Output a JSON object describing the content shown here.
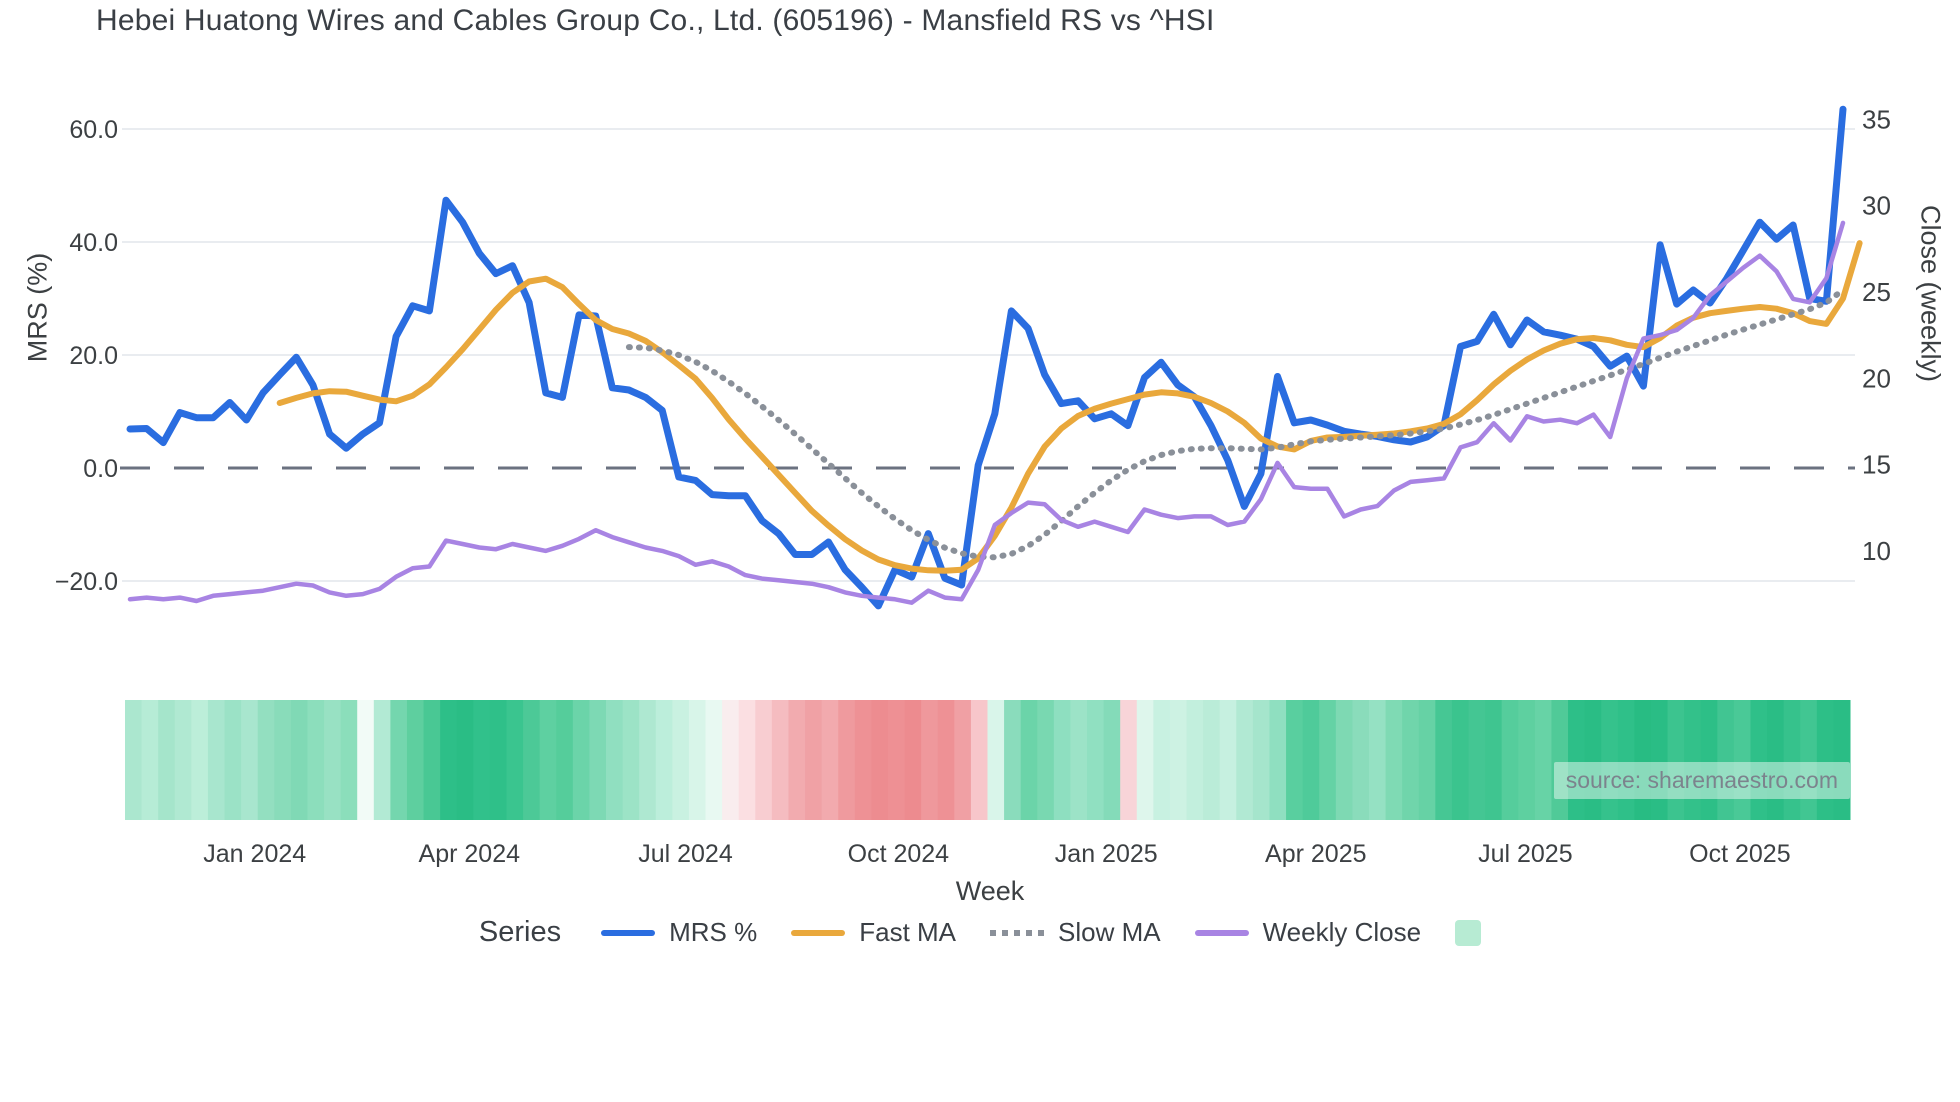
{
  "header": {
    "title": "Hebei Huatong Wires and Cables Group Co., Ltd. (605196) - Mansfield RS vs ^HSI"
  },
  "source_note": "source: sharemaestro.com",
  "legend": {
    "title": "Series",
    "items": [
      {
        "label": "MRS %",
        "swatch": "line",
        "color": "#2a6de0"
      },
      {
        "label": "Fast MA",
        "swatch": "line",
        "color": "#e9a83c"
      },
      {
        "label": "Slow MA",
        "swatch": "dotted",
        "color": "#8a9099"
      },
      {
        "label": "Weekly Close",
        "swatch": "line",
        "color": "#a884e3"
      },
      {
        "label": "",
        "swatch": "square",
        "color": "#b7ebd3"
      }
    ]
  },
  "colors": {
    "mrs_blue": "#2a6de0",
    "fast_ma_orange": "#e9a83c",
    "slow_ma_gray": "#8a9099",
    "weekly_close_purple": "#a884e3",
    "zero_line": "#6b7280",
    "gridline": "#e9ecf0",
    "tick_text": "#3c4043",
    "heat_green_dark": "#2abd85",
    "heat_green_light": "#b6ecd6",
    "heat_red": "#ed8c90"
  },
  "chart_data": {
    "type": "line",
    "title": "Hebei Huatong Wires and Cables Group Co., Ltd. (605196) - Mansfield RS vs ^HSI",
    "xlabel": "Week",
    "ylabel_left": "MRS (%)",
    "ylabel_right": "Close (weekly)",
    "ylim_left": [
      -26.9,
      66.9
    ],
    "ylim_right": [
      6.0,
      36.7
    ],
    "weeks_total": 104,
    "grid": true,
    "legend_position": "bottom",
    "left_ticks": [
      {
        "v": 60,
        "label": "60.0"
      },
      {
        "v": 40,
        "label": "40.0"
      },
      {
        "v": 20,
        "label": "20.0"
      },
      {
        "v": 0,
        "label": "0.0"
      },
      {
        "v": -20,
        "label": "−20.0"
      }
    ],
    "right_ticks": [
      {
        "v": 35,
        "label": "35"
      },
      {
        "v": 30,
        "label": "30"
      },
      {
        "v": 25,
        "label": "25"
      },
      {
        "v": 20,
        "label": "20"
      },
      {
        "v": 15,
        "label": "15"
      },
      {
        "v": 10,
        "label": "10"
      }
    ],
    "x_ticks": [
      {
        "week": 7.5,
        "label": "Jan 2024"
      },
      {
        "week": 20.4,
        "label": "Apr 2024"
      },
      {
        "week": 33.4,
        "label": "Jul 2024"
      },
      {
        "week": 46.2,
        "label": "Oct 2024"
      },
      {
        "week": 58.7,
        "label": "Jan 2025"
      },
      {
        "week": 71.3,
        "label": "Apr 2025"
      },
      {
        "week": 83.9,
        "label": "Jul 2025"
      },
      {
        "week": 96.8,
        "label": "Oct 2025"
      }
    ],
    "series": [
      {
        "name": "MRS %",
        "axis": "left",
        "color": "#2a6de0",
        "style": "solid",
        "width": 7,
        "start_week": 0,
        "values": [
          6.9,
          7.0,
          4.5,
          9.8,
          8.9,
          8.9,
          11.6,
          8.5,
          13.3,
          16.5,
          19.6,
          14.7,
          6.0,
          3.5,
          6.0,
          8.0,
          23.3,
          28.7,
          27.8,
          47.4,
          43.5,
          38.0,
          34.4,
          35.8,
          29.3,
          13.3,
          12.5,
          27.1,
          26.9,
          14.2,
          13.8,
          12.5,
          10.2,
          -1.6,
          -2.2,
          -4.7,
          -4.9,
          -4.9,
          -9.3,
          -11.6,
          -15.3,
          -15.3,
          -13.1,
          -18.0,
          -21.1,
          -24.4,
          -18.0,
          -19.3,
          -11.6,
          -19.5,
          -20.7,
          0.5,
          9.6,
          27.8,
          24.7,
          16.5,
          11.4,
          11.9,
          8.7,
          9.6,
          7.5,
          16.0,
          18.7,
          14.7,
          12.6,
          7.5,
          1.4,
          -6.8,
          -1.0,
          16.2,
          8.0,
          8.5,
          7.6,
          6.5,
          6.0,
          5.6,
          5.0,
          4.6,
          5.5,
          7.5,
          21.5,
          22.4,
          27.2,
          21.8,
          26.2,
          24.1,
          23.5,
          22.8,
          21.5,
          18.0,
          19.8,
          14.5,
          39.5,
          29.0,
          31.5,
          29.2,
          33.5,
          38.5,
          43.5,
          40.5,
          43.0,
          30.0,
          29.5,
          63.5
        ]
      },
      {
        "name": "Fast MA",
        "axis": "left",
        "color": "#e9a83c",
        "style": "solid",
        "width": 6,
        "start_week": 9,
        "values": [
          11.5,
          12.4,
          13.2,
          13.6,
          13.5,
          12.8,
          12.1,
          11.8,
          12.8,
          14.8,
          17.8,
          21.0,
          24.5,
          28.0,
          31.0,
          33.0,
          33.5,
          32.0,
          29.0,
          26.2,
          24.6,
          23.8,
          22.5,
          20.5,
          18.2,
          15.8,
          12.4,
          8.6,
          5.2,
          2.0,
          -1.2,
          -4.4,
          -7.6,
          -10.2,
          -12.6,
          -14.6,
          -16.2,
          -17.2,
          -17.8,
          -18.1,
          -18.2,
          -18.0,
          -16.0,
          -12.0,
          -7.0,
          -1.0,
          3.8,
          7.0,
          9.2,
          10.5,
          11.4,
          12.2,
          13.0,
          13.4,
          13.2,
          12.6,
          11.5,
          10.0,
          8.0,
          5.2,
          3.8,
          3.3,
          4.8,
          5.4,
          5.5,
          5.7,
          5.9,
          6.1,
          6.5,
          7.0,
          7.8,
          9.5,
          12.0,
          14.8,
          17.2,
          19.2,
          20.8,
          22.0,
          22.8,
          23.0,
          22.6,
          21.8,
          21.4,
          23.0,
          25.2,
          26.6,
          27.4,
          27.8,
          28.2,
          28.5,
          28.2,
          27.4,
          26.0,
          25.5,
          30.0,
          39.8
        ]
      },
      {
        "name": "Slow MA",
        "axis": "left",
        "color": "#8a9099",
        "style": "dotted",
        "width": 4.5,
        "start_week": 30,
        "values": [
          21.4,
          21.3,
          20.8,
          20.0,
          18.8,
          17.2,
          15.3,
          13.2,
          10.9,
          8.5,
          6.0,
          3.4,
          0.8,
          -1.8,
          -4.4,
          -6.8,
          -9.0,
          -11.0,
          -12.7,
          -14.1,
          -15.1,
          -15.7,
          -15.8,
          -15.2,
          -13.8,
          -11.8,
          -9.4,
          -6.8,
          -4.4,
          -2.2,
          -0.3,
          1.2,
          2.3,
          3.0,
          3.4,
          3.5,
          3.5,
          3.4,
          3.3,
          3.6,
          4.2,
          4.7,
          5.0,
          5.2,
          5.4,
          5.6,
          5.8,
          6.1,
          6.5,
          7.0,
          7.7,
          8.5,
          9.4,
          10.4,
          11.4,
          12.4,
          13.4,
          14.4,
          15.4,
          16.4,
          17.4,
          18.4,
          19.5,
          20.6,
          21.6,
          22.6,
          23.6,
          24.5,
          25.4,
          26.3,
          27.2,
          28.1,
          29.3,
          31.5
        ]
      },
      {
        "name": "Weekly Close",
        "axis": "right",
        "color": "#a884e3",
        "style": "solid",
        "width": 4.5,
        "start_week": 0,
        "values": [
          7.2,
          7.3,
          7.2,
          7.3,
          7.1,
          7.4,
          7.5,
          7.6,
          7.7,
          7.9,
          8.1,
          8.0,
          7.6,
          7.4,
          7.5,
          7.8,
          8.5,
          9.0,
          9.1,
          10.6,
          10.4,
          10.2,
          10.1,
          10.4,
          10.2,
          10.0,
          10.3,
          10.7,
          11.2,
          10.8,
          10.5,
          10.2,
          10.0,
          9.7,
          9.2,
          9.4,
          9.1,
          8.6,
          8.4,
          8.3,
          8.2,
          8.1,
          7.9,
          7.6,
          7.4,
          7.3,
          7.2,
          7.0,
          7.7,
          7.3,
          7.2,
          8.9,
          11.5,
          12.2,
          12.8,
          12.7,
          11.8,
          11.4,
          11.7,
          11.4,
          11.1,
          12.4,
          12.1,
          11.9,
          12.0,
          12.0,
          11.5,
          11.7,
          13.0,
          15.1,
          13.7,
          13.6,
          13.6,
          12.0,
          12.4,
          12.6,
          13.5,
          14.0,
          14.1,
          14.2,
          16.0,
          16.3,
          17.4,
          16.4,
          17.8,
          17.5,
          17.6,
          17.4,
          17.9,
          16.6,
          20.0,
          22.3,
          22.5,
          22.8,
          23.5,
          24.8,
          25.6,
          26.4,
          27.1,
          26.2,
          24.6,
          24.4,
          25.8,
          29.0
        ]
      }
    ],
    "heatmap_colors": [
      "#abe7cf",
      "#b6ecd6",
      "#a5e5cb",
      "#b0e9d2",
      "#bceed9",
      "#a8e6ce",
      "#9be2c6",
      "#a8e6ce",
      "#93dfc0",
      "#89dcba",
      "#80d9b5",
      "#8cdebc",
      "#98e1c3",
      "#8bdebb",
      "#f2fbf7",
      "#b2ead4",
      "#74d6ae",
      "#5ecf9f",
      "#49c894",
      "#2dbf88",
      "#2abd85",
      "#31c18b",
      "#2fc089",
      "#3ac58f",
      "#4cc997",
      "#5ed0a1",
      "#55cd9b",
      "#6bd4a9",
      "#7dd9b4",
      "#90dfc0",
      "#9ce3c6",
      "#aee8d1",
      "#bceedb",
      "#c9f1e1",
      "#d8f5e9",
      "#e8f9f2",
      "#f9edee",
      "#fbdfe2",
      "#f8cdd1",
      "#f5bcc0",
      "#f2abaf",
      "#f0a1a5",
      "#f2aaae",
      "#ef9a9e",
      "#ee9195",
      "#ed8c90",
      "#ee9094",
      "#ed8b8f",
      "#ef989c",
      "#ee9195",
      "#f0a0a4",
      "#f7c6ca",
      "#d9f5ea",
      "#8adcbc",
      "#6bd4a9",
      "#79d8b1",
      "#8edfc0",
      "#9ce3c7",
      "#90e0c1",
      "#84dbb9",
      "#f8d4d8",
      "#def6ec",
      "#c8f1e1",
      "#cdf2e3",
      "#c2efdd",
      "#baecd8",
      "#c6f0e0",
      "#b1e9d3",
      "#a5e5cc",
      "#8fdfc0",
      "#59cf9f",
      "#4fcb9a",
      "#65d2a5",
      "#7ed9b3",
      "#8adcbb",
      "#95e1c3",
      "#7fdab4",
      "#70d5ab",
      "#66d2a5",
      "#46c794",
      "#3bc48e",
      "#44c693",
      "#3fc590",
      "#55cd9c",
      "#5ed0a0",
      "#67d3a6",
      "#50ca98",
      "#2dbf88",
      "#2abd85",
      "#35c28c",
      "#2fc089",
      "#28bc83",
      "#2abd85",
      "#3cc48f",
      "#33c18a",
      "#2dbf87",
      "#41c592",
      "#4ac997",
      "#2fc089",
      "#2abd85",
      "#36c28c",
      "#41c692",
      "#2dbf87",
      "#2abd85"
    ]
  }
}
